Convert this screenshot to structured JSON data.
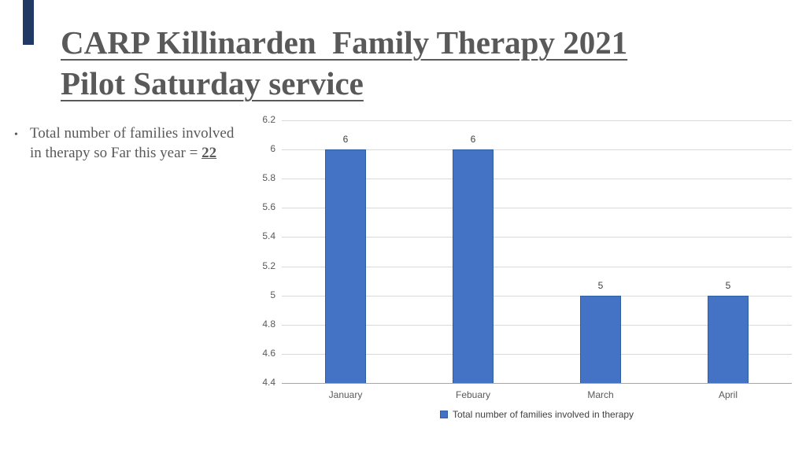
{
  "slide": {
    "title_lines": [
      "CARP Killinarden  Family Therapy 2021",
      "Pilot Saturday service"
    ],
    "bullet": {
      "marker": "•",
      "text": "Total number of families involved in therapy so Far this year = ",
      "value": "22"
    }
  },
  "colors": {
    "accent_strip": "#1F3864",
    "title_text": "#595959",
    "body_text": "#595959",
    "bar_fill": "#4472C4",
    "bar_border": "#2E5FA3",
    "gridline": "#D9D9D9",
    "axis_line": "#A6A6A6",
    "tick_text": "#595959"
  },
  "chart_data": {
    "type": "bar",
    "categories": [
      "January",
      "Febuary",
      "March",
      "April"
    ],
    "series": [
      {
        "name": "Total number of families involved in therapy",
        "values": [
          6,
          6,
          5,
          5
        ]
      }
    ],
    "data_labels": [
      "6",
      "6",
      "5",
      "5"
    ],
    "title": "",
    "xlabel": "",
    "ylabel": "",
    "ylim": [
      4.4,
      6.2
    ],
    "ytick_step": 0.2,
    "ytick_labels": [
      "6.2",
      "6",
      "5.8",
      "5.6",
      "5.4",
      "5.2",
      "5",
      "4.8",
      "4.6",
      "4.4"
    ],
    "grid": true,
    "legend_position": "bottom",
    "legend_label": "Total number of families involved in therapy"
  }
}
